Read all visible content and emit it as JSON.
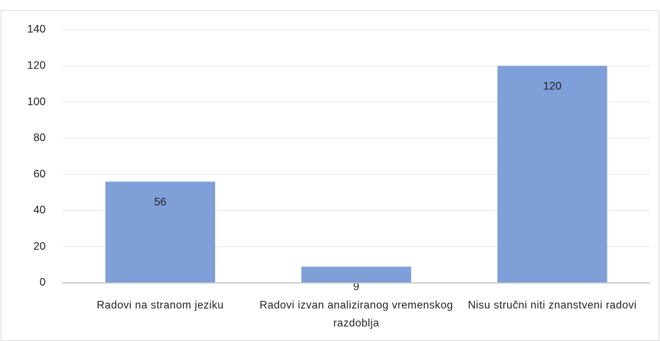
{
  "chart_data": {
    "type": "bar",
    "categories": [
      "Radovi na stranom jeziku",
      "Radovi izvan analiziranog vremenskog razdoblja",
      "Nisu stručni niti znanstveni radovi"
    ],
    "values": [
      56,
      9,
      120
    ],
    "color": "#7f9fd9",
    "ylim": [
      0,
      140
    ],
    "yticks": [
      0,
      20,
      40,
      60,
      80,
      100,
      120,
      140
    ],
    "grid": true,
    "data_labels": true
  }
}
